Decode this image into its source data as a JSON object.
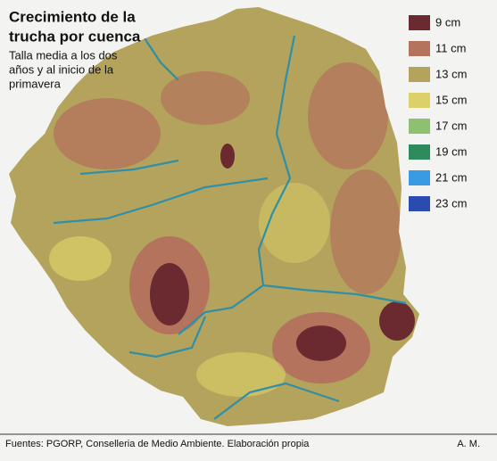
{
  "header": {
    "title_lines": [
      "Crecimiento de la",
      "trucha por cuenca"
    ],
    "subtitle_lines": [
      "Talla media a los dos",
      "años y al inicio de la",
      "primavera"
    ]
  },
  "legend": [
    {
      "label": "9 cm",
      "color": "#6b2a30"
    },
    {
      "label": "11 cm",
      "color": "#b4735c"
    },
    {
      "label": "13 cm",
      "color": "#b3a35c"
    },
    {
      "label": "15 cm",
      "color": "#dcd068"
    },
    {
      "label": "17 cm",
      "color": "#8fc06f"
    },
    {
      "label": "19 cm",
      "color": "#2e8c5c"
    },
    {
      "label": "21 cm",
      "color": "#3a9be2"
    },
    {
      "label": "23 cm",
      "color": "#2a4cb0"
    }
  ],
  "footer": {
    "source": "Fuentes: PGORP, Conselleria de Medio Ambiente. Elaboración propia",
    "author": "A. M."
  }
}
